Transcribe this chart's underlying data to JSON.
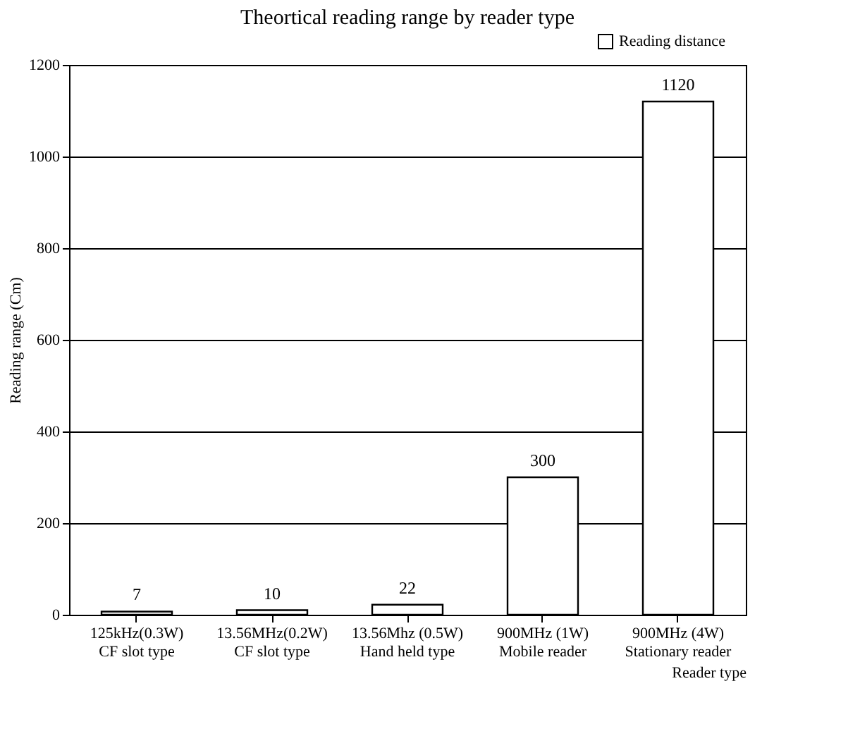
{
  "chart_data": {
    "type": "bar",
    "title": "Theortical reading range by reader type",
    "xlabel": "Reader type",
    "ylabel": "Reading range (Cm)",
    "categories": [
      "125kHz(0.3W)\nCF slot type",
      "13.56MHz(0.2W)\nCF slot type",
      "13.56Mhz (0.5W)\nHand held type",
      "900MHz (1W)\nMobile reader",
      "900MHz (4W)\nStationary reader"
    ],
    "series": [
      {
        "name": "Reading distance",
        "color": "#ffffff",
        "values": [
          7,
          10,
          22,
          300,
          1120
        ]
      }
    ],
    "ylim": [
      0,
      1200
    ],
    "yticks": [
      0,
      200,
      400,
      600,
      800,
      1000,
      1200
    ],
    "grid": "y",
    "legend": "top right",
    "data_labels": true
  }
}
